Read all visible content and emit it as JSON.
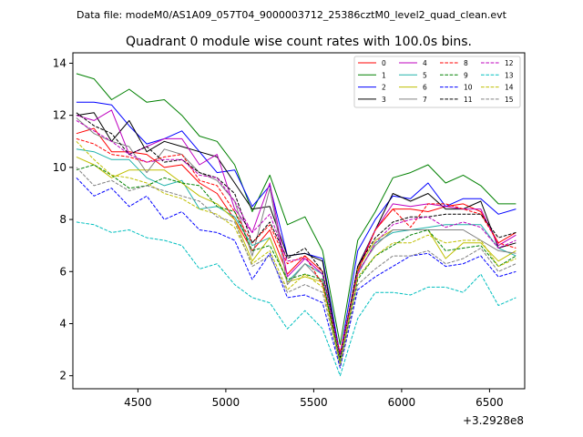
{
  "header": {
    "datafile_text": "Data file: modeM0/AS1A09_057T04_9000003712_25386cztM0_level2_quad_clean.evt"
  },
  "chart_data": {
    "type": "line",
    "title": "Quadrant 0 module wise count rates with 100.0s bins.",
    "xlabel": "",
    "ylabel": "",
    "x_offset_label": "+3.2928e8",
    "xlim": [
      4130,
      6700
    ],
    "ylim": [
      1.5,
      14.4
    ],
    "xticks": [
      4500,
      5000,
      5500,
      6000,
      6500
    ],
    "yticks": [
      2,
      4,
      6,
      8,
      10,
      12,
      14
    ],
    "legend_position": "upper-right",
    "legend_columns": 4,
    "x": [
      4150,
      4250,
      4350,
      4450,
      4550,
      4650,
      4750,
      4850,
      4950,
      5050,
      5150,
      5250,
      5350,
      5450,
      5550,
      5650,
      5750,
      5850,
      5950,
      6050,
      6150,
      6250,
      6350,
      6450,
      6550,
      6650
    ],
    "series": [
      {
        "name": "0",
        "color": "#ff0000",
        "dash": "solid",
        "values": [
          11.3,
          11.5,
          10.6,
          10.6,
          10.5,
          10.0,
          10.1,
          9.4,
          9.0,
          8.0,
          6.8,
          7.6,
          5.9,
          6.6,
          6.0,
          2.6,
          6.0,
          7.6,
          8.4,
          8.4,
          8.3,
          8.5,
          8.6,
          8.3,
          7.1,
          7.5
        ]
      },
      {
        "name": "1",
        "color": "#008000",
        "dash": "solid",
        "values": [
          13.6,
          13.4,
          12.6,
          13.0,
          12.5,
          12.6,
          12.0,
          11.2,
          11.0,
          10.1,
          8.3,
          9.7,
          7.8,
          8.1,
          6.8,
          3.2,
          7.2,
          8.3,
          9.6,
          9.8,
          10.1,
          9.4,
          9.7,
          9.3,
          8.6,
          8.6
        ]
      },
      {
        "name": "2",
        "color": "#0000ff",
        "dash": "solid",
        "values": [
          12.5,
          12.5,
          12.4,
          11.6,
          10.9,
          11.1,
          11.4,
          10.6,
          9.8,
          9.9,
          8.5,
          9.3,
          6.6,
          6.7,
          6.5,
          2.8,
          6.8,
          8.0,
          8.9,
          8.8,
          9.4,
          8.5,
          8.8,
          8.8,
          8.2,
          8.4
        ]
      },
      {
        "name": "3",
        "color": "#000000",
        "dash": "solid",
        "values": [
          12.0,
          12.1,
          11.0,
          11.8,
          10.6,
          11.0,
          10.8,
          10.6,
          10.4,
          9.4,
          8.4,
          8.5,
          6.6,
          6.7,
          6.4,
          2.6,
          6.2,
          7.6,
          9.0,
          8.7,
          9.0,
          8.4,
          8.4,
          8.7,
          6.9,
          7.1
        ]
      },
      {
        "name": "4",
        "color": "#bf00bf",
        "dash": "solid",
        "values": [
          12.0,
          11.8,
          12.2,
          10.5,
          10.8,
          11.1,
          11.1,
          10.1,
          10.5,
          8.4,
          7.5,
          9.4,
          5.8,
          6.5,
          5.9,
          2.7,
          6.1,
          7.6,
          8.6,
          8.5,
          8.6,
          8.5,
          8.4,
          8.4,
          7.0,
          7.4
        ]
      },
      {
        "name": "5",
        "color": "#20b2aa",
        "dash": "solid",
        "values": [
          10.7,
          10.6,
          10.3,
          10.3,
          9.6,
          9.3,
          9.5,
          8.4,
          8.5,
          8.1,
          7.0,
          7.3,
          5.6,
          6.3,
          5.9,
          2.6,
          5.9,
          7.1,
          7.5,
          7.6,
          7.7,
          7.8,
          7.8,
          7.8,
          6.9,
          6.6
        ]
      },
      {
        "name": "6",
        "color": "#bfbf00",
        "dash": "solid",
        "values": [
          10.4,
          10.1,
          9.6,
          9.9,
          9.9,
          9.9,
          9.4,
          8.9,
          8.6,
          8.0,
          6.4,
          7.3,
          5.6,
          5.8,
          5.6,
          2.4,
          6.1,
          7.2,
          7.6,
          7.6,
          7.6,
          6.5,
          7.1,
          7.1,
          6.4,
          6.8
        ]
      },
      {
        "name": "7",
        "color": "#808080",
        "dash": "solid",
        "values": [
          11.9,
          11.3,
          11.0,
          10.8,
          9.8,
          10.7,
          10.5,
          9.8,
          9.5,
          8.7,
          6.6,
          9.2,
          5.5,
          6.3,
          5.6,
          2.7,
          6.0,
          7.0,
          7.6,
          7.6,
          7.6,
          7.6,
          7.6,
          7.2,
          6.8,
          6.7
        ]
      },
      {
        "name": "8",
        "color": "#ff0000",
        "dash": "dashed",
        "values": [
          11.1,
          10.9,
          10.5,
          10.4,
          10.2,
          10.4,
          10.5,
          9.5,
          9.3,
          8.3,
          7.1,
          7.8,
          6.3,
          6.6,
          5.5,
          2.9,
          6.0,
          7.6,
          8.4,
          7.7,
          8.6,
          8.6,
          8.4,
          8.2,
          7.1,
          6.9
        ]
      },
      {
        "name": "9",
        "color": "#008000",
        "dash": "dashed",
        "values": [
          9.9,
          10.1,
          9.7,
          9.2,
          9.3,
          9.6,
          9.4,
          9.3,
          8.5,
          8.3,
          6.8,
          7.0,
          5.7,
          5.9,
          5.7,
          2.5,
          5.7,
          6.6,
          7.0,
          7.4,
          7.6,
          6.8,
          6.9,
          7.0,
          6.2,
          6.6
        ]
      },
      {
        "name": "10",
        "color": "#0000ff",
        "dash": "dashed",
        "values": [
          9.6,
          8.9,
          9.2,
          8.5,
          8.9,
          8.0,
          8.3,
          7.6,
          7.5,
          7.2,
          5.7,
          6.7,
          5.0,
          5.1,
          4.8,
          2.3,
          5.3,
          5.8,
          6.2,
          6.6,
          6.7,
          6.2,
          6.3,
          6.6,
          5.8,
          6.0
        ]
      },
      {
        "name": "11",
        "color": "#000000",
        "dash": "dashed",
        "values": [
          12.1,
          11.6,
          11.3,
          10.5,
          10.8,
          10.2,
          10.3,
          9.8,
          9.6,
          9.0,
          7.1,
          7.9,
          6.5,
          6.9,
          6.0,
          2.7,
          6.2,
          7.3,
          7.9,
          8.1,
          8.1,
          8.2,
          8.2,
          8.2,
          7.3,
          7.5
        ]
      },
      {
        "name": "12",
        "color": "#bf00bf",
        "dash": "dashed",
        "values": [
          11.8,
          11.4,
          11.0,
          10.5,
          10.2,
          10.3,
          10.3,
          9.7,
          9.6,
          8.7,
          7.5,
          8.2,
          6.4,
          6.5,
          5.9,
          2.8,
          5.9,
          7.1,
          7.8,
          8.0,
          8.1,
          7.7,
          7.9,
          7.7,
          6.9,
          7.2
        ]
      },
      {
        "name": "13",
        "color": "#00bfbf",
        "dash": "dashed",
        "values": [
          7.9,
          7.8,
          7.5,
          7.6,
          7.3,
          7.2,
          7.0,
          6.1,
          6.3,
          5.5,
          5.0,
          4.8,
          3.8,
          4.5,
          3.8,
          2.0,
          4.2,
          5.2,
          5.2,
          5.1,
          5.4,
          5.4,
          5.2,
          5.9,
          4.7,
          5.0
        ]
      },
      {
        "name": "14",
        "color": "#bfbf00",
        "dash": "dashed",
        "values": [
          11.0,
          10.3,
          9.7,
          9.6,
          9.4,
          9.0,
          8.8,
          8.4,
          8.2,
          7.7,
          6.3,
          6.8,
          5.3,
          5.9,
          5.4,
          2.5,
          5.8,
          6.6,
          7.1,
          7.1,
          7.4,
          7.1,
          7.2,
          7.2,
          6.2,
          6.5
        ]
      },
      {
        "name": "15",
        "color": "#808080",
        "dash": "dashed",
        "values": [
          10.0,
          9.3,
          9.5,
          9.1,
          9.3,
          9.1,
          8.9,
          8.7,
          8.1,
          7.9,
          6.2,
          6.6,
          5.2,
          5.5,
          5.2,
          2.4,
          5.5,
          6.1,
          6.6,
          6.6,
          6.8,
          6.3,
          6.5,
          6.9,
          6.0,
          6.3
        ]
      }
    ]
  }
}
